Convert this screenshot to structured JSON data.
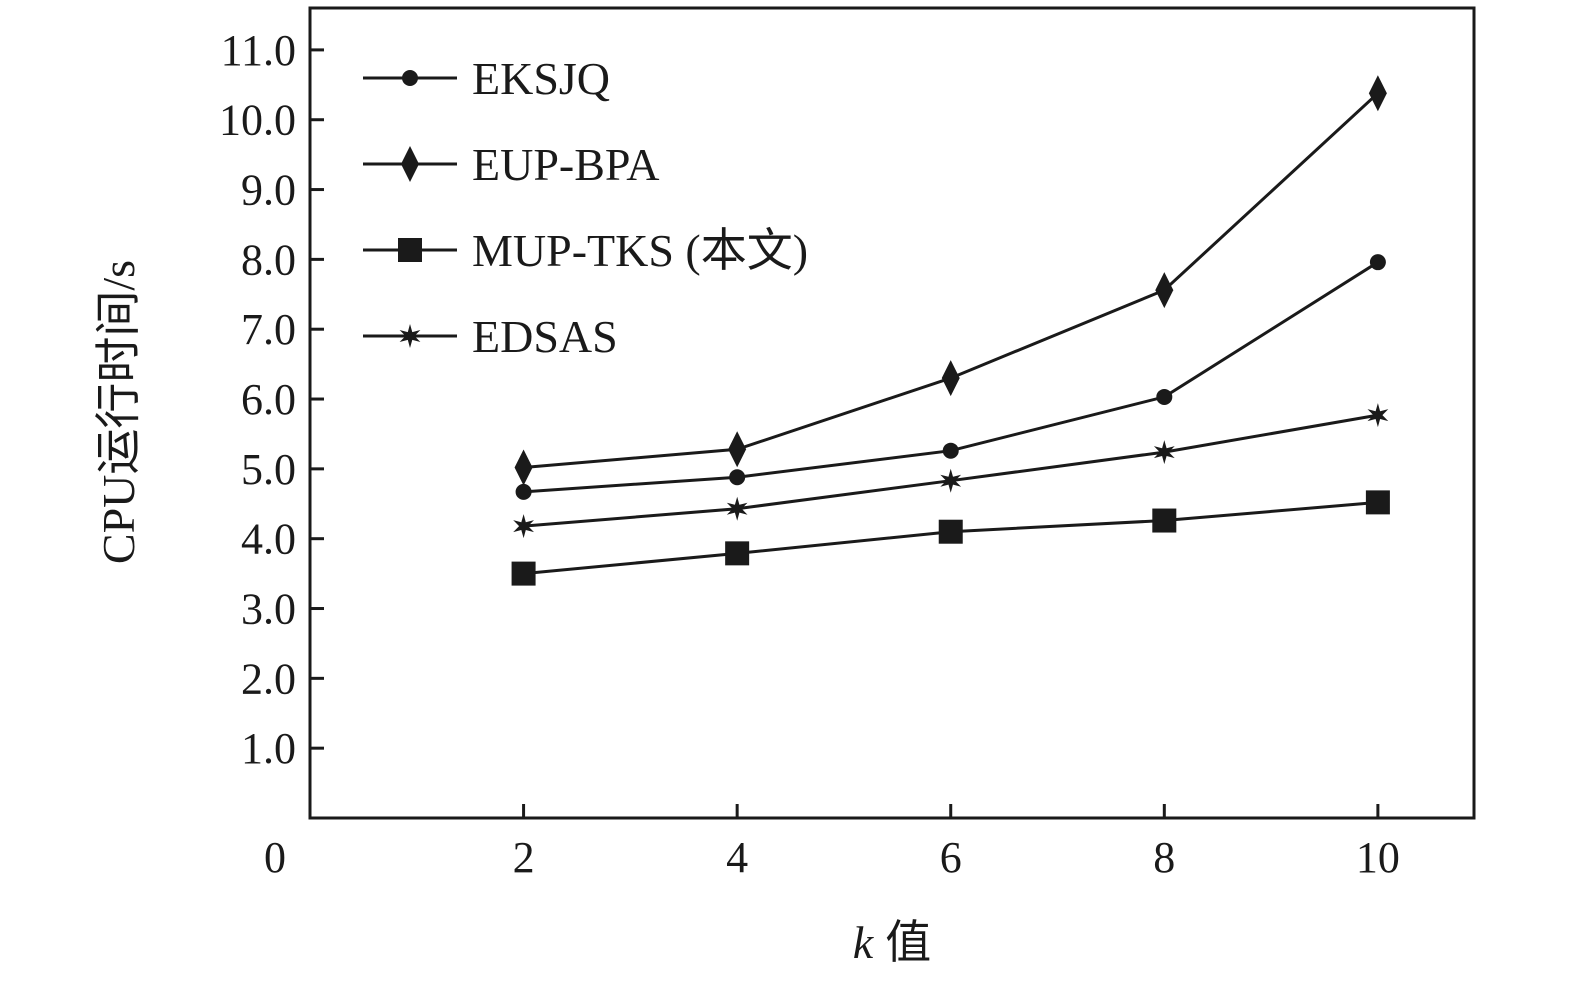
{
  "chart_data": {
    "type": "line",
    "xlabel_var": "k",
    "xlabel_rest": "值",
    "ylabel": "CPU运行时间/s",
    "origin_label": "0",
    "x": [
      2,
      4,
      6,
      8,
      10
    ],
    "x_tick_labels": [
      "2",
      "4",
      "6",
      "8",
      "10"
    ],
    "xlim": [
      0,
      10.9
    ],
    "ylim": [
      0,
      11.6
    ],
    "y_ticks": [
      1,
      2,
      3,
      4,
      5,
      6,
      7,
      8,
      9,
      10,
      11
    ],
    "y_tick_labels": [
      "1.0",
      "2.0",
      "3.0",
      "4.0",
      "5.0",
      "6.0",
      "7.0",
      "8.0",
      "9.0",
      "10.0",
      "11.0"
    ],
    "legend_position": "top-left",
    "grid": false,
    "series": [
      {
        "name": "EKSJQ",
        "marker": "circle",
        "values": [
          4.67,
          4.88,
          5.26,
          6.03,
          7.96
        ]
      },
      {
        "name": "EUP-BPA",
        "marker": "diamond",
        "values": [
          5.02,
          5.28,
          6.3,
          7.56,
          10.38
        ]
      },
      {
        "name": "MUP-TKS (本文)",
        "marker": "square",
        "values": [
          3.5,
          3.79,
          4.1,
          4.26,
          4.52
        ]
      },
      {
        "name": "EDSAS",
        "marker": "star",
        "values": [
          4.18,
          4.43,
          4.83,
          5.24,
          5.77
        ]
      }
    ],
    "color": "#1a1a1a"
  }
}
